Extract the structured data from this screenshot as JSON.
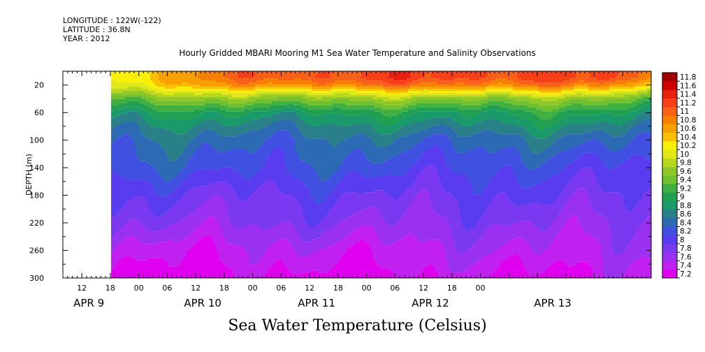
{
  "header": {
    "longitude": "LONGITUDE : 122W(-122)",
    "latitude": "LATITUDE : 36.8N",
    "year": "YEAR : 2012"
  },
  "chart_data": {
    "type": "heatmap",
    "title": "Hourly Gridded MBARI Mooring M1 Sea Water Temperature and Salinity Observations",
    "colorbar_title": "Sea Water Temperature (Celsius)",
    "ylabel": "DEPTH (m)",
    "ylim": [
      300,
      0
    ],
    "y_inverted": true,
    "y_ticks": [
      20,
      60,
      100,
      140,
      180,
      220,
      260,
      300
    ],
    "x_start": "2012-04-08 08:00",
    "x_end": "2012-04-13 12:00",
    "data_start": "2012-04-08 15:00",
    "x_tick_labels": [
      "12",
      "18",
      "00",
      "06",
      "12",
      "18",
      "00",
      "06",
      "12",
      "18",
      "00",
      "06",
      "12",
      "18",
      "00"
    ],
    "x_tick_times": [
      "2012-04-08 12:00",
      "2012-04-08 18:00",
      "2012-04-09 00:00",
      "2012-04-09 06:00",
      "2012-04-09 12:00",
      "2012-04-09 18:00",
      "2012-04-10 00:00",
      "2012-04-10 06:00",
      "2012-04-10 12:00",
      "2012-04-10 18:00",
      "2012-04-11 00:00",
      "2012-04-11 06:00",
      "2012-04-11 12:00",
      "2012-04-11 18:00",
      "2012-04-12 00:00"
    ],
    "day_labels": [
      "APR  9",
      "APR 10",
      "APR 11",
      "APR 12",
      "APR 13"
    ],
    "color_levels": [
      "7.2",
      "7.4",
      "7.6",
      "7.8",
      "8",
      "8.2",
      "8.4",
      "8.6",
      "8.8",
      "9",
      "9.2",
      "9.4",
      "9.6",
      "9.8",
      "10",
      "10.2",
      "10.4",
      "10.6",
      "10.8",
      "11",
      "11.2",
      "11.4",
      "11.6",
      "11.8"
    ],
    "colors": [
      "#e000f0",
      "#c020f0",
      "#9a30f0",
      "#7a38f0",
      "#5a3cf0",
      "#4050e0",
      "#2c6ab4",
      "#2a8088",
      "#1a9a6a",
      "#20a050",
      "#40b040",
      "#70c030",
      "#90c828",
      "#b8d820",
      "#e0e818",
      "#f8f008",
      "#f8c000",
      "#f8a000",
      "#f88000",
      "#f86018",
      "#f84018",
      "#e82010",
      "#d00000",
      "#a00000"
    ],
    "temperature_profiles": [
      {
        "time": "2012-04-08 15:00",
        "depths": [
          10,
          20,
          30,
          40,
          60,
          80,
          100,
          140,
          180,
          220,
          260,
          300
        ],
        "values": [
          10.3,
          10.2,
          9.9,
          9.5,
          9.0,
          8.7,
          8.5,
          8.3,
          8.0,
          7.8,
          7.5,
          7.3
        ]
      },
      {
        "time": "2012-04-10 06:00",
        "depths": [
          10,
          20,
          30,
          40,
          60,
          80,
          100,
          140,
          180,
          220,
          260,
          300
        ],
        "values": [
          11.2,
          10.9,
          10.2,
          9.7,
          9.0,
          8.7,
          8.5,
          8.3,
          8.0,
          7.8,
          7.5,
          7.3
        ]
      },
      {
        "time": "2012-04-12 12:00",
        "depths": [
          10,
          20,
          30,
          40,
          60,
          80,
          100,
          140,
          180,
          220,
          260,
          300
        ],
        "values": [
          11.3,
          11.0,
          10.3,
          9.7,
          9.1,
          8.8,
          8.5,
          8.2,
          8.0,
          7.8,
          7.6,
          7.4
        ]
      },
      {
        "time": "2012-04-13 12:00",
        "depths": [
          10,
          20,
          30,
          40,
          60,
          80,
          100,
          140,
          180,
          220,
          260,
          300
        ],
        "values": [
          11.0,
          10.6,
          10.0,
          9.5,
          9.0,
          8.7,
          8.5,
          8.2,
          8.0,
          7.8,
          7.6,
          7.4
        ]
      }
    ]
  }
}
